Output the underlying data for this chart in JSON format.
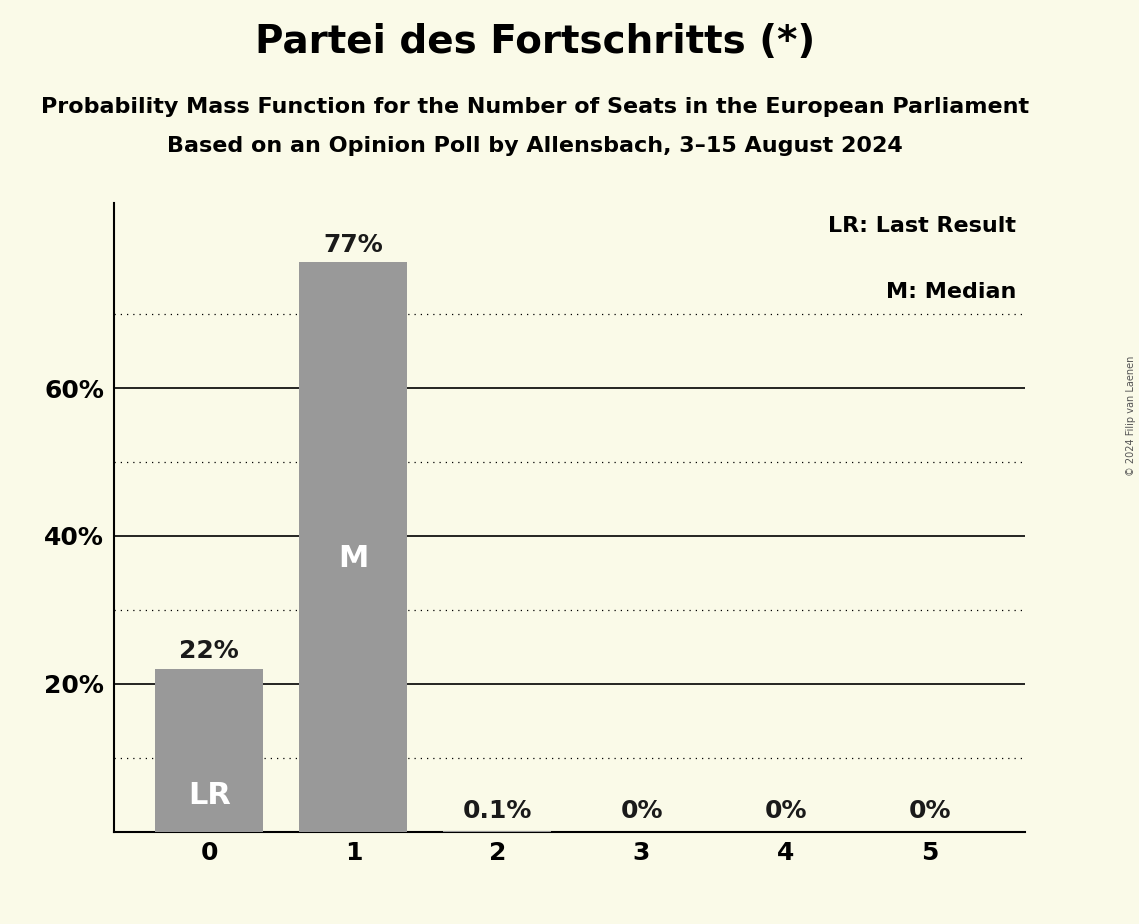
{
  "title": "Partei des Fortschritts (*)",
  "subtitle1": "Probability Mass Function for the Number of Seats in the European Parliament",
  "subtitle2": "Based on an Opinion Poll by Allensbach, 3–15 August 2024",
  "copyright": "© 2024 Filip van Laenen",
  "categories": [
    0,
    1,
    2,
    3,
    4,
    5
  ],
  "values": [
    0.22,
    0.77,
    0.001,
    0.0,
    0.0,
    0.0
  ],
  "bar_labels": [
    "22%",
    "77%",
    "0.1%",
    "0%",
    "0%",
    "0%"
  ],
  "bar_color": "#999999",
  "background_color": "#FAFAE8",
  "bar_label_color_outside": "#1a1a1a",
  "legend_lr": "LR: Last Result",
  "legend_m": "M: Median",
  "lr_bar": 0,
  "median_bar": 1,
  "lr_label": "LR",
  "median_label": "M",
  "ylim": [
    0,
    0.85
  ],
  "yticks": [
    0.2,
    0.4,
    0.6
  ],
  "ytick_labels": [
    "20%",
    "40%",
    "60%"
  ],
  "solid_gridlines": [
    0.2,
    0.4,
    0.6
  ],
  "dotted_gridlines": [
    0.1,
    0.3,
    0.5,
    0.7
  ],
  "title_fontsize": 28,
  "subtitle_fontsize": 16,
  "axis_fontsize": 18,
  "bar_label_fontsize": 18,
  "inside_label_fontsize": 22
}
